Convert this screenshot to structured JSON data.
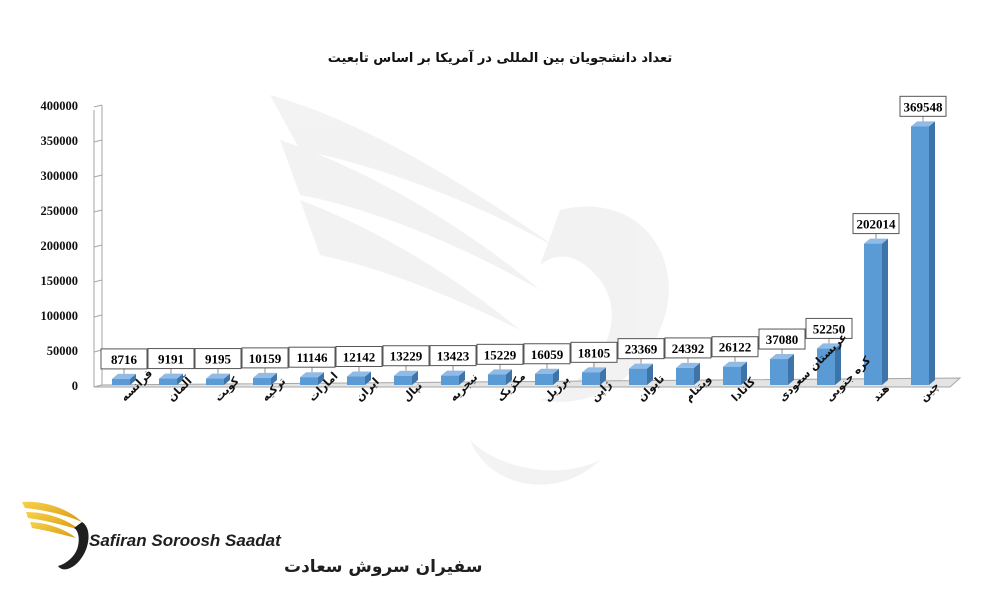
{
  "chart_data": {
    "type": "bar",
    "title": "تعداد دانشجویان بین المللی در آمریکا بر اساس تابعیت",
    "categories": [
      "فرانسه",
      "آلمان",
      "کویت",
      "ترکیه",
      "امارات",
      "ایران",
      "نپال",
      "نیجریه",
      "مکزیک",
      "برزیل",
      "ژاپن",
      "تایوان",
      "ویتنام",
      "کانادا",
      "عربستان سعودی",
      "کره جنوبی",
      "هند",
      "چین"
    ],
    "values": [
      8716,
      9191,
      9195,
      10159,
      11146,
      12142,
      13229,
      13423,
      15229,
      16059,
      18105,
      23369,
      24392,
      26122,
      37080,
      52250,
      202014,
      369548
    ],
    "y_ticks": [
      "0",
      "50000",
      "100000",
      "150000",
      "200000",
      "250000",
      "300000",
      "350000",
      "400000"
    ],
    "ylim": [
      0,
      400000
    ],
    "bar_color": "#5b9bd5",
    "grid": false,
    "legend": "none"
  },
  "watermark": {
    "brand_en": "Safiran Soroosh Saadat",
    "brand_fa": "سفیران سروش سعادت"
  }
}
